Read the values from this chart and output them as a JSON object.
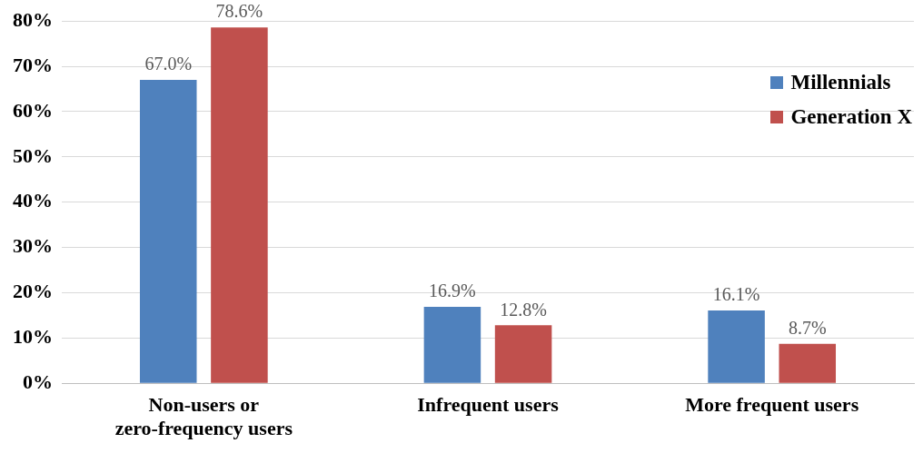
{
  "chart_data": {
    "type": "bar",
    "categories": [
      "Non-users or\nzero-frequency users",
      "Infrequent users",
      "More frequent users"
    ],
    "series": [
      {
        "name": "Millennials",
        "color": "#4f81bd",
        "values": [
          67.0,
          16.9,
          16.1
        ],
        "value_labels": [
          "67.0%",
          "16.9%",
          "16.1%"
        ]
      },
      {
        "name": "Generation X",
        "color": "#c0504d",
        "values": [
          78.6,
          12.8,
          8.7
        ],
        "value_labels": [
          "78.6%",
          "12.8%",
          "8.7%"
        ]
      }
    ],
    "ylim": [
      0,
      80
    ],
    "yticks": [
      {
        "value": 0,
        "label": "0%"
      },
      {
        "value": 10,
        "label": "10%"
      },
      {
        "value": 20,
        "label": "20%"
      },
      {
        "value": 30,
        "label": "30%"
      },
      {
        "value": 40,
        "label": "40%"
      },
      {
        "value": 50,
        "label": "50%"
      },
      {
        "value": 60,
        "label": "60%"
      },
      {
        "value": 70,
        "label": "70%"
      },
      {
        "value": 80,
        "label": "80%"
      }
    ],
    "grid": "y",
    "legend": "top right"
  }
}
